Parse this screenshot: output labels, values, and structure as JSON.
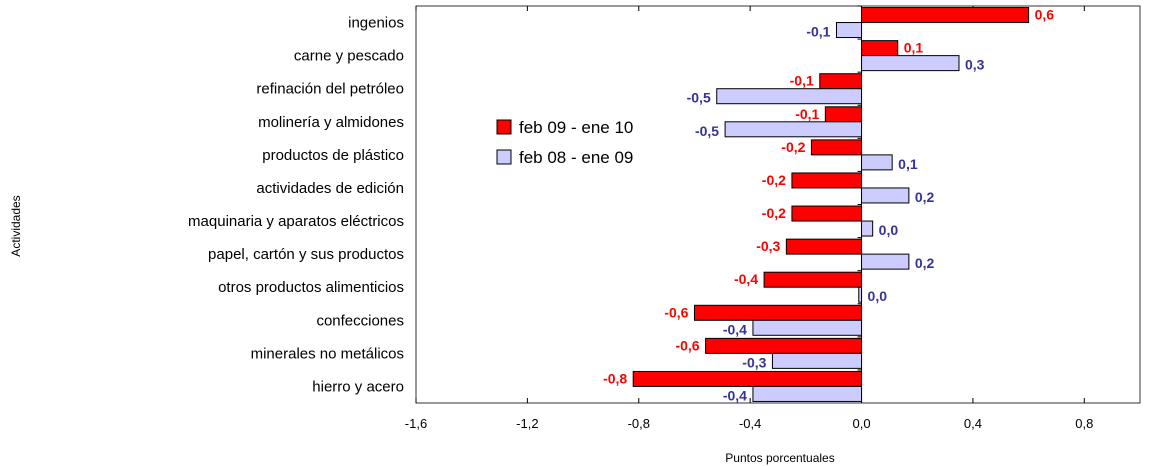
{
  "chart_data": {
    "type": "bar",
    "orientation": "horizontal",
    "categories": [
      "ingenios",
      "carne y pescado",
      "refinación del petróleo",
      "molinería y almidones",
      "productos de plástico",
      "actividades de edición",
      "maquinaria y aparatos eléctricos",
      "papel, cartón y sus productos",
      "otros productos alimenticios",
      "confecciones",
      "minerales no metálicos",
      "hierro y acero"
    ],
    "series": [
      {
        "name": "feb 09 - ene 10",
        "color": "#ff0000",
        "label_color": "#ff0000",
        "values": [
          0.6,
          0.13,
          -0.15,
          -0.13,
          -0.18,
          -0.25,
          -0.25,
          -0.27,
          -0.35,
          -0.6,
          -0.56,
          -0.82
        ],
        "labels": [
          "0,6",
          "0,1",
          "-0,1",
          "-0,1",
          "-0,2",
          "-0,2",
          "-0,2",
          "-0,3",
          "-0,4",
          "-0,6",
          "-0,6",
          "-0,8"
        ]
      },
      {
        "name": "feb 08 - ene 09",
        "color": "#ccccff",
        "label_color": "#333399",
        "values": [
          -0.09,
          0.35,
          -0.52,
          -0.49,
          0.11,
          0.17,
          0.04,
          0.17,
          -0.01,
          -0.39,
          -0.32,
          -0.39
        ],
        "labels": [
          "-0,1",
          "0,3",
          "-0,5",
          "-0,5",
          "0,1",
          "0,2",
          "0,0",
          "0,2",
          "0,0",
          "-0,4",
          "-0,3",
          "-0,4"
        ]
      }
    ],
    "xlim": [
      -1.6,
      1.0
    ],
    "xticks": [
      -1.6,
      -1.2,
      -0.8,
      -0.4,
      0.0,
      0.4,
      0.8
    ],
    "xtick_labels": [
      "-1,6",
      "-1,2",
      "-0,8",
      "-0,4",
      "0,0",
      "0,4",
      "0,8"
    ],
    "xlabel": "Puntos porcentuales",
    "ylabel": "Actividades",
    "title": "",
    "grid": false,
    "legend_position": "upper-left-inside"
  }
}
